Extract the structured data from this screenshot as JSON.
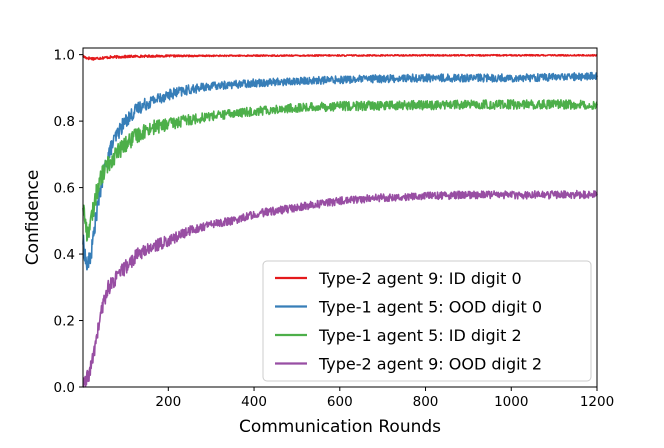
{
  "chart_data": {
    "type": "line",
    "title": "",
    "xlabel": "Communication Rounds",
    "ylabel": "Confidence",
    "xlim": [
      1,
      1200
    ],
    "ylim": [
      0.0,
      1.02
    ],
    "xticks": [
      200,
      400,
      600,
      800,
      1000,
      1200
    ],
    "yticks": [
      0.0,
      0.2,
      0.4,
      0.6,
      0.8,
      1.0
    ],
    "xtick_labels": [
      "200",
      "400",
      "600",
      "800",
      "1000",
      "1200"
    ],
    "ytick_labels": [
      "0.0",
      "0.2",
      "0.4",
      "0.6",
      "0.8",
      "1.0"
    ],
    "grid": false,
    "legend_position": "lower-right",
    "series": [
      {
        "name": "Type-2 agent 9: ID digit 0",
        "color": "#e41a1c",
        "noise": 0.002,
        "points": [
          [
            1,
            0.995
          ],
          [
            10,
            0.99
          ],
          [
            25,
            0.988
          ],
          [
            60,
            0.992
          ],
          [
            120,
            0.995
          ],
          [
            200,
            0.996
          ],
          [
            400,
            0.997
          ],
          [
            800,
            0.998
          ],
          [
            1200,
            0.998
          ]
        ]
      },
      {
        "name": "Type-1 agent 5: OOD digit 0",
        "color": "#377eb8",
        "noise": 0.012,
        "points": [
          [
            1,
            0.44
          ],
          [
            10,
            0.36
          ],
          [
            20,
            0.4
          ],
          [
            30,
            0.5
          ],
          [
            40,
            0.58
          ],
          [
            50,
            0.65
          ],
          [
            60,
            0.7
          ],
          [
            80,
            0.76
          ],
          [
            100,
            0.8
          ],
          [
            130,
            0.84
          ],
          [
            160,
            0.86
          ],
          [
            200,
            0.88
          ],
          [
            250,
            0.895
          ],
          [
            300,
            0.905
          ],
          [
            400,
            0.915
          ],
          [
            500,
            0.92
          ],
          [
            600,
            0.925
          ],
          [
            800,
            0.93
          ],
          [
            1000,
            0.93
          ],
          [
            1200,
            0.935
          ]
        ]
      },
      {
        "name": "Type-1 agent 5: ID digit 2",
        "color": "#4daf4a",
        "noise": 0.014,
        "points": [
          [
            1,
            0.55
          ],
          [
            10,
            0.46
          ],
          [
            20,
            0.5
          ],
          [
            30,
            0.57
          ],
          [
            40,
            0.62
          ],
          [
            50,
            0.65
          ],
          [
            70,
            0.69
          ],
          [
            100,
            0.73
          ],
          [
            130,
            0.76
          ],
          [
            160,
            0.78
          ],
          [
            200,
            0.79
          ],
          [
            250,
            0.805
          ],
          [
            300,
            0.815
          ],
          [
            400,
            0.83
          ],
          [
            500,
            0.84
          ],
          [
            600,
            0.845
          ],
          [
            800,
            0.848
          ],
          [
            1000,
            0.85
          ],
          [
            1200,
            0.85
          ]
        ]
      },
      {
        "name": "Type-2 agent 9: OOD digit 2",
        "color": "#984ea3",
        "noise": 0.012,
        "points": [
          [
            1,
            0.0
          ],
          [
            10,
            0.02
          ],
          [
            20,
            0.06
          ],
          [
            30,
            0.13
          ],
          [
            40,
            0.2
          ],
          [
            50,
            0.26
          ],
          [
            60,
            0.3
          ],
          [
            80,
            0.33
          ],
          [
            100,
            0.36
          ],
          [
            130,
            0.4
          ],
          [
            160,
            0.42
          ],
          [
            200,
            0.44
          ],
          [
            250,
            0.47
          ],
          [
            300,
            0.49
          ],
          [
            350,
            0.5
          ],
          [
            400,
            0.52
          ],
          [
            500,
            0.54
          ],
          [
            600,
            0.56
          ],
          [
            700,
            0.57
          ],
          [
            800,
            0.575
          ],
          [
            900,
            0.578
          ],
          [
            1000,
            0.578
          ],
          [
            1100,
            0.578
          ],
          [
            1200,
            0.58
          ]
        ]
      }
    ]
  }
}
